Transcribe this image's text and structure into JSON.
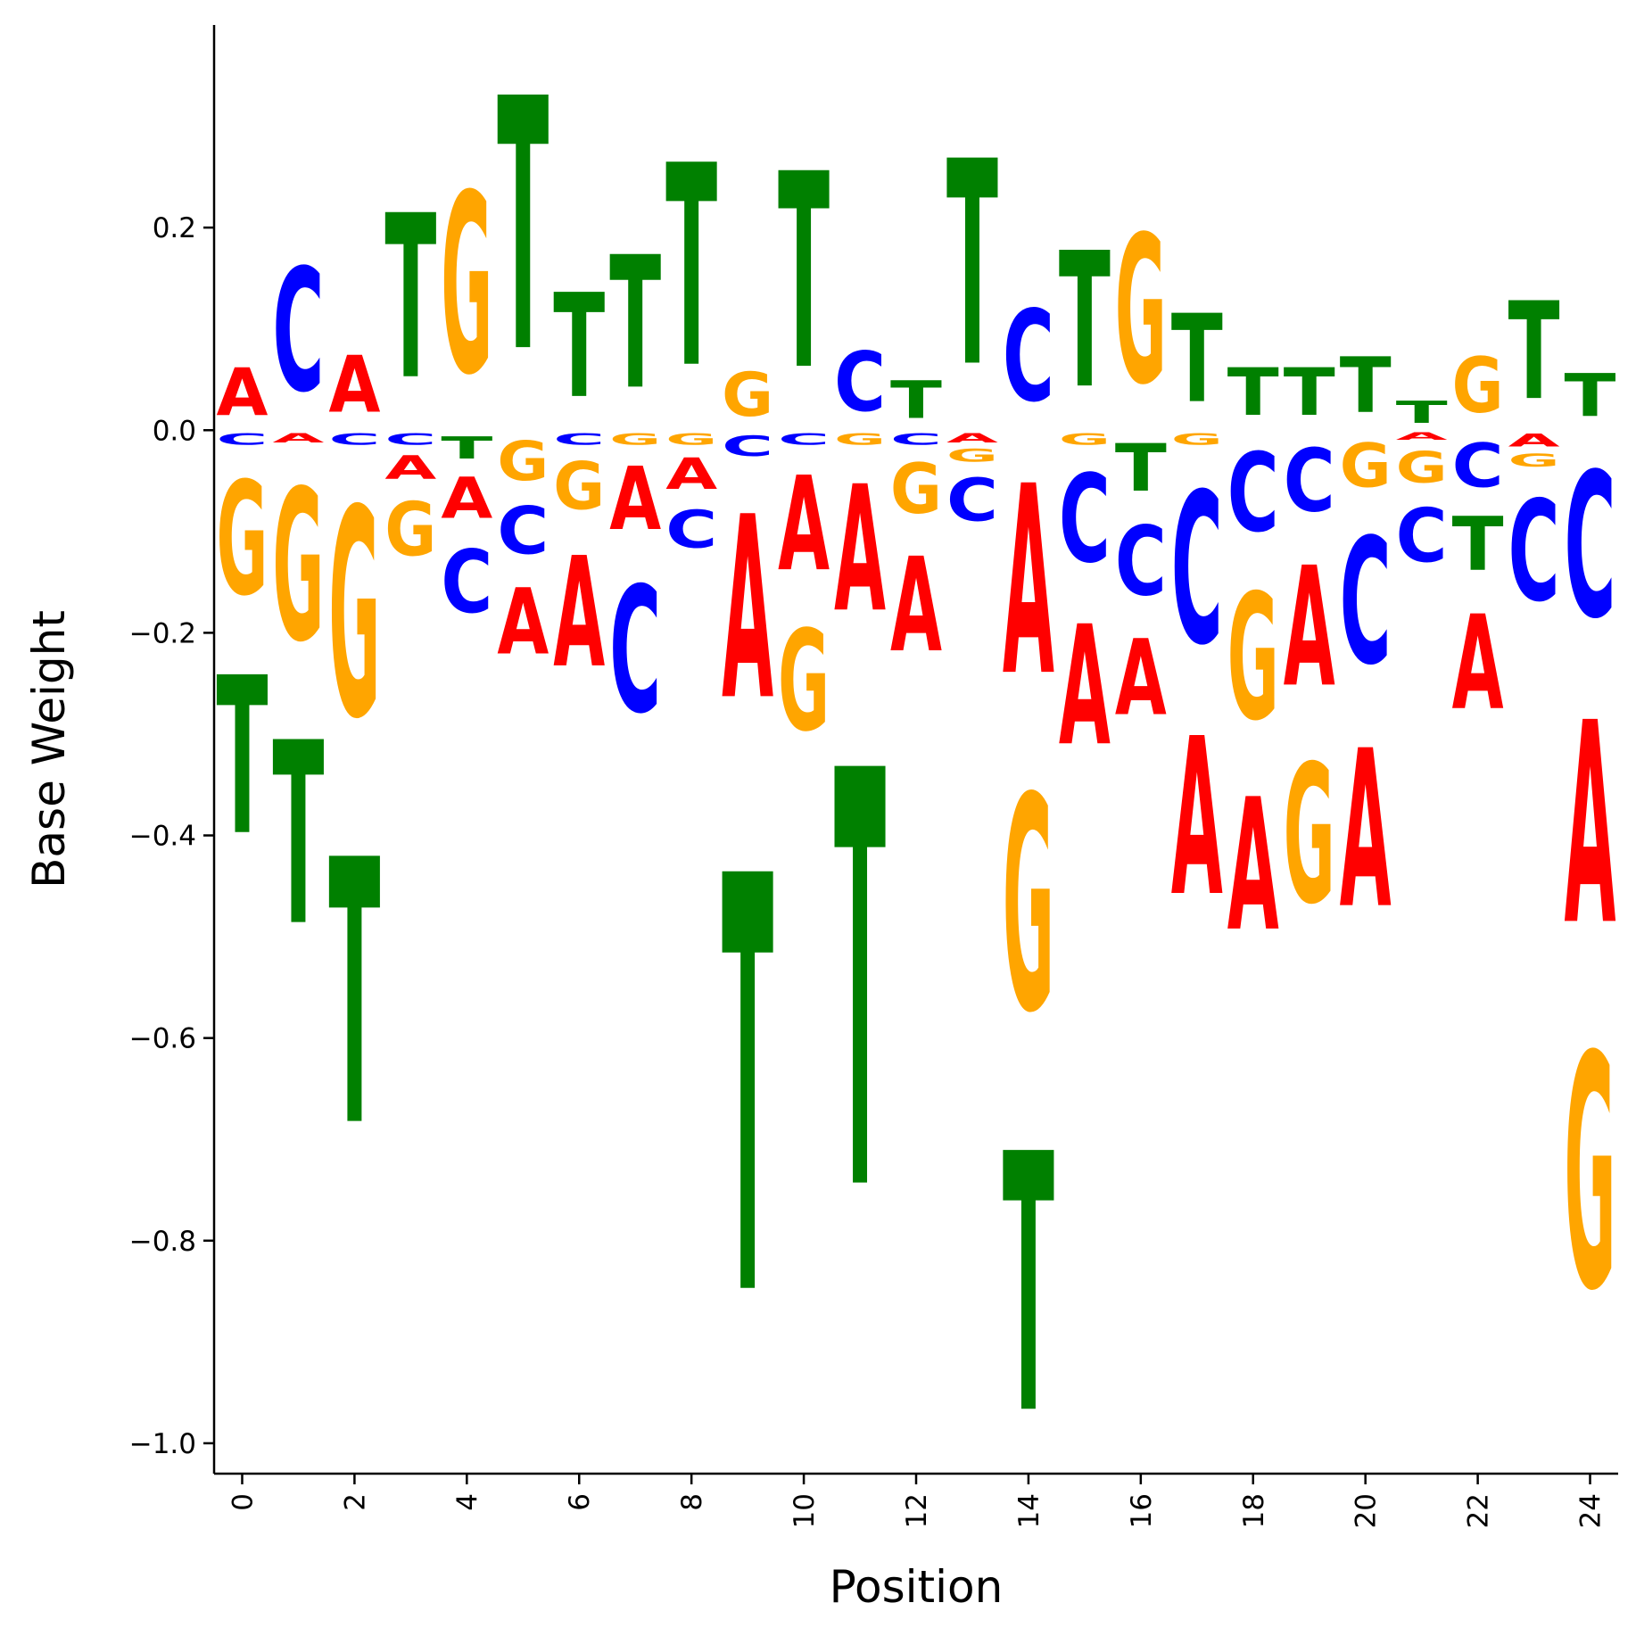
{
  "chart_data": {
    "type": "sequence-logo",
    "title": "",
    "xlabel": "Position",
    "ylabel": "Base Weight",
    "xlim": [
      -0.5,
      24.5
    ],
    "ylim": [
      -1.03,
      0.4
    ],
    "xticks": [
      0,
      2,
      4,
      6,
      8,
      10,
      12,
      14,
      16,
      18,
      20,
      22,
      24
    ],
    "xtick_labels": [
      "0",
      "2",
      "4",
      "6",
      "8",
      "10",
      "12",
      "14",
      "16",
      "18",
      "20",
      "22",
      "24"
    ],
    "yticks": [
      -1.0,
      -0.8,
      -0.6,
      -0.4,
      -0.2,
      0.0,
      0.2
    ],
    "ytick_labels": [
      "−1.0",
      "−0.8",
      "−0.6",
      "−0.4",
      "−0.2",
      "0.0",
      "0.2"
    ],
    "grid": false,
    "base_colors": {
      "A": "#ff0000",
      "C": "#0000ff",
      "G": "#ffa500",
      "T": "#008000"
    },
    "positions": [
      {
        "pos": 0,
        "A": 0.075,
        "C": -0.018,
        "G": -0.18,
        "T": -0.25
      },
      {
        "pos": 1,
        "A": -0.015,
        "C": 0.195,
        "G": -0.24,
        "T": -0.29
      },
      {
        "pos": 2,
        "A": 0.09,
        "C": -0.018,
        "G": -0.33,
        "T": -0.42
      },
      {
        "pos": 3,
        "A": -0.038,
        "C": -0.018,
        "G": -0.085,
        "T": 0.26
      },
      {
        "pos": 4,
        "A": -0.065,
        "C": -0.1,
        "G": 0.285,
        "T": -0.035
      },
      {
        "pos": 5,
        "A": -0.105,
        "C": -0.075,
        "G": -0.062,
        "T": 0.4
      },
      {
        "pos": 6,
        "A": -0.175,
        "C": -0.018,
        "G": -0.075,
        "T": 0.165
      },
      {
        "pos": 7,
        "A": -0.1,
        "C": -0.2,
        "G": -0.018,
        "T": 0.21
      },
      {
        "pos": 8,
        "A": -0.05,
        "C": -0.06,
        "G": -0.018,
        "T": 0.32
      },
      {
        "pos": 9,
        "A": -0.29,
        "C": -0.032,
        "G": 0.07,
        "T": -0.66
      },
      {
        "pos": 10,
        "A": -0.15,
        "C": -0.018,
        "G": -0.16,
        "T": 0.31
      },
      {
        "pos": 11,
        "A": -0.2,
        "C": 0.095,
        "G": -0.018,
        "T": -0.66
      },
      {
        "pos": 12,
        "A": -0.15,
        "C": -0.018,
        "G": -0.08,
        "T": 0.06
      },
      {
        "pos": 13,
        "A": -0.015,
        "C": -0.068,
        "G": -0.02,
        "T": 0.325
      },
      {
        "pos": 14,
        "A": -0.3,
        "C": 0.145,
        "G": -0.34,
        "T": -0.41
      },
      {
        "pos": 15,
        "A": -0.19,
        "C": -0.14,
        "G": -0.018,
        "T": 0.215
      },
      {
        "pos": 16,
        "A": -0.12,
        "C": -0.11,
        "G": 0.235,
        "T": -0.075
      },
      {
        "pos": 17,
        "A": -0.25,
        "C": -0.24,
        "G": -0.018,
        "T": 0.14
      },
      {
        "pos": 18,
        "A": -0.21,
        "C": -0.125,
        "G": -0.2,
        "T": 0.075
      },
      {
        "pos": 19,
        "A": -0.19,
        "C": -0.1,
        "G": -0.22,
        "T": 0.075
      },
      {
        "pos": 20,
        "A": -0.25,
        "C": -0.2,
        "G": -0.07,
        "T": 0.088
      },
      {
        "pos": 21,
        "A": -0.012,
        "C": -0.085,
        "G": -0.05,
        "T": 0.035
      },
      {
        "pos": 22,
        "A": -0.15,
        "C": -0.07,
        "G": 0.088,
        "T": -0.085
      },
      {
        "pos": 23,
        "A": -0.02,
        "C": -0.16,
        "G": -0.02,
        "T": 0.155
      },
      {
        "pos": 24,
        "A": -0.32,
        "C": -0.23,
        "G": -0.37,
        "T": 0.068
      }
    ]
  }
}
